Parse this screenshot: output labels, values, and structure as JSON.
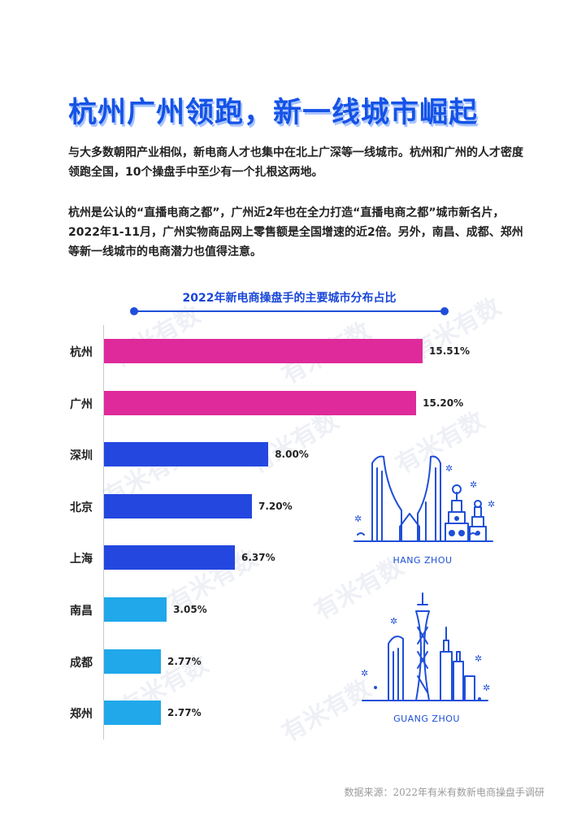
{
  "headline": "杭州广州领跑，新一线城市崛起",
  "paragraph1": "与大多数朝阳产业相似，新电商人才也集中在北上广深等一线城市。杭州和广州的人才密度领跑全国，10个操盘手中至少有一个扎根这两地。",
  "paragraph2": "杭州是公认的“直播电商之都”，广州近2年也在全力打造“直播电商之都”城市新名片，2022年1-11月，广州实物商品网上零售额是全国增速的近2倍。另外，南昌、成都、郑州等新一线城市的电商潜力也值得注意。",
  "watermark_text": "有米有数",
  "chart_data": {
    "type": "bar",
    "orientation": "horizontal",
    "title": "2022年新电商操盘手的主要城市分布占比",
    "categories": [
      "杭州",
      "广州",
      "深圳",
      "北京",
      "上海",
      "南昌",
      "成都",
      "郑州"
    ],
    "values": [
      15.51,
      15.2,
      8.0,
      7.2,
      6.37,
      3.05,
      2.77,
      2.77
    ],
    "value_labels": [
      "15.51%",
      "15.20%",
      "8.00%",
      "7.20%",
      "6.37%",
      "3.05%",
      "2.77%",
      "2.77%"
    ],
    "unit": "%",
    "bar_colors": [
      "#de2a9a",
      "#de2a9a",
      "#2447e0",
      "#2447e0",
      "#2447e0",
      "#20a8ea",
      "#20a8ea",
      "#20a8ea"
    ],
    "grid": false,
    "xlim": [
      0,
      15.51
    ]
  },
  "illustrations": {
    "top_caption": "HANG ZHOU",
    "bottom_caption": "GUANG ZHOU",
    "line_color": "#1f4fd8"
  },
  "footer": "数据来源：2022年有米有数新电商操盘手调研"
}
